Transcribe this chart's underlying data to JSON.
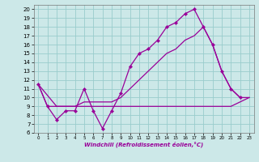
{
  "background_color": "#cce8e8",
  "line_color": "#990099",
  "grid_color": "#99cccc",
  "xlabel": "Windchill (Refroidissement éolien,°C)",
  "xlim": [
    -0.5,
    23.5
  ],
  "ylim": [
    6,
    20.5
  ],
  "xticks": [
    0,
    1,
    2,
    3,
    4,
    5,
    6,
    7,
    8,
    9,
    10,
    11,
    12,
    13,
    14,
    15,
    16,
    17,
    18,
    19,
    20,
    21,
    22,
    23
  ],
  "yticks": [
    6,
    7,
    8,
    9,
    10,
    11,
    12,
    13,
    14,
    15,
    16,
    17,
    18,
    19,
    20
  ],
  "line1_x": [
    0,
    1,
    2,
    3,
    4,
    5,
    6,
    7,
    8,
    9,
    10,
    11,
    12,
    13,
    14,
    15,
    16,
    17,
    18,
    19,
    20,
    21,
    22
  ],
  "line1_y": [
    11.5,
    9.0,
    7.5,
    8.5,
    8.5,
    11.0,
    8.5,
    6.5,
    8.5,
    10.5,
    13.5,
    15.0,
    15.5,
    16.5,
    18.0,
    18.5,
    19.5,
    20.0,
    18.0,
    16.0,
    13.0,
    11.0,
    10.0
  ],
  "line2_x": [
    0,
    1,
    2,
    3,
    4,
    5,
    6,
    7,
    8,
    9,
    10,
    11,
    12,
    13,
    14,
    15,
    16,
    17,
    18,
    19,
    20,
    21,
    22,
    23
  ],
  "line2_y": [
    11.5,
    9.0,
    9.0,
    9.0,
    9.0,
    9.0,
    9.0,
    9.0,
    9.0,
    9.0,
    9.0,
    9.0,
    9.0,
    9.0,
    9.0,
    9.0,
    9.0,
    9.0,
    9.0,
    9.0,
    9.0,
    9.0,
    9.5,
    10.0
  ],
  "line3_x": [
    0,
    2,
    3,
    4,
    5,
    7,
    8,
    9,
    10,
    11,
    12,
    13,
    14,
    15,
    16,
    17,
    18,
    19,
    20,
    21,
    22,
    23
  ],
  "line3_y": [
    11.5,
    9.0,
    9.0,
    9.0,
    9.5,
    9.5,
    9.5,
    10.0,
    11.0,
    12.0,
    13.0,
    14.0,
    15.0,
    15.5,
    16.5,
    17.0,
    18.0,
    16.0,
    13.0,
    11.0,
    10.0,
    10.0
  ]
}
